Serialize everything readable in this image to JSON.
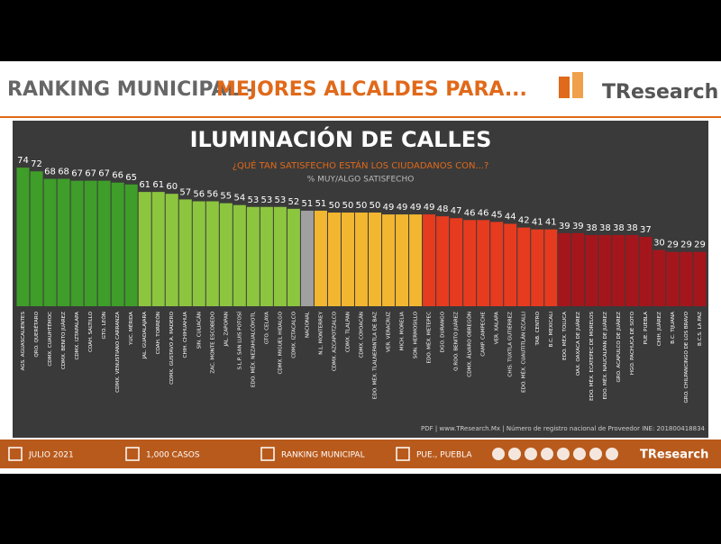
{
  "header": {
    "title_part1": "RANKING MUNICIPAL –",
    "title_part2": "MEJORES ALCALDES PARA...",
    "logo": "TResearch"
  },
  "chart_data": {
    "type": "bar",
    "title": "ILUMINACIÓN DE CALLES",
    "subtitle": "¿QUÉ TAN SATISFECHO ESTÁN LOS CIUDADANOS CON...?",
    "value_label_caption": "% MUY/ALGO SATISFECHO",
    "categories": [
      "AGS. AGUASCALIENTES",
      "QRO. QUERÉTARO",
      "CDMX. CUAUHTÉMOC",
      "CDMX. BENITO JUÁREZ",
      "CDMX. IZTAPALAPA",
      "COAH. SALTILLO",
      "GTO. LEÓN",
      "CDMX. VENUSTIANO CARRANZA",
      "YUC. MÉRIDA",
      "JAL. GUADALAJARA",
      "COAH. TORREÓN",
      "CDMX. GUSTAVO A. MADERO",
      "CHIH. CHIHUAHUA",
      "SIN. CULIACÁN",
      "ZAC. MONTE ESCOBEDO",
      "JAL. ZAPOPAN",
      "S.L.P. SAN LUIS POTOSÍ",
      "EDO. MÉX. NEZAHUALCÓYOTL",
      "GTO. CELAYA",
      "CDMX. MIGUEL HIDALGO",
      "CDMX. IZTACALCO",
      "NACIONAL",
      "N.L. MONTERREY",
      "CDMX. AZCAPOTZALCO",
      "CDMX. TLALPAN",
      "CDMX. COYOACÁN",
      "EDO. MÉX. TLALNEPANTLA DE BAZ",
      "VER. VERACRUZ",
      "MICH. MORELIA",
      "SON. HERMOSILLO",
      "EDO. MÉX. METEPEC",
      "DGO. DURANGO",
      "Q.ROO. BENITO JUÁREZ",
      "CDMX. ÁLVARO OBREGÓN",
      "CAMP. CAMPECHE",
      "VER. XALAPA",
      "CHIS. TUXTLA GUTIÉRREZ",
      "EDO. MÉX. CUAUTITLÁN IZCALLI",
      "TAB. CENTRO",
      "B.C. MEXICALI",
      "EDO. MÉX. TOLUCA",
      "OAX. OAXACA DE JUÁREZ",
      "EDO. MÉX. ECATEPEC DE MORELOS",
      "EDO. MÉX. NAUCALPAN DE JUÁREZ",
      "GRO. ACAPULCO DE JUÁREZ",
      "HGO. PACHUCA DE SOTO",
      "PUE. PUEBLA",
      "CHIH. JUÁREZ",
      "B.C. TIJUANA",
      "GRO. CHILPANCINGO DE LOS BRAVO",
      "B.C.S. LA PAZ"
    ],
    "values": [
      74,
      72,
      68,
      68,
      67,
      67,
      67,
      66,
      65,
      61,
      61,
      60,
      57,
      56,
      56,
      55,
      54,
      53,
      53,
      53,
      52,
      51,
      51,
      50,
      50,
      50,
      50,
      49,
      49,
      49,
      49,
      48,
      47,
      46,
      46,
      45,
      44,
      42,
      41,
      41,
      39,
      39,
      38,
      38,
      38,
      38,
      37,
      30,
      29,
      29,
      29
    ],
    "colors": [
      "#3f9d2a",
      "#3f9d2a",
      "#3f9d2a",
      "#3f9d2a",
      "#3f9d2a",
      "#3f9d2a",
      "#3f9d2a",
      "#3f9d2a",
      "#3f9d2a",
      "#8cc63f",
      "#8cc63f",
      "#8cc63f",
      "#8cc63f",
      "#8cc63f",
      "#8cc63f",
      "#8cc63f",
      "#8cc63f",
      "#8cc63f",
      "#8cc63f",
      "#8cc63f",
      "#8cc63f",
      "#a0a0a0",
      "#f2b630",
      "#f2b630",
      "#f2b630",
      "#f2b630",
      "#f2b630",
      "#f2b630",
      "#f2b630",
      "#f2b630",
      "#e63b1f",
      "#e63b1f",
      "#e63b1f",
      "#e63b1f",
      "#e63b1f",
      "#e63b1f",
      "#e63b1f",
      "#e63b1f",
      "#e63b1f",
      "#e63b1f",
      "#a5161c",
      "#a5161c",
      "#a5161c",
      "#a5161c",
      "#a5161c",
      "#a5161c",
      "#a5161c",
      "#a5161c",
      "#a5161c",
      "#a5161c",
      "#a5161c"
    ],
    "source": "PDF | www.TResearch.Mx | Número de registro nacional de Proveedor INE: 201800418834"
  },
  "footer": {
    "items": [
      "JULIO 2021",
      "1,000 CASOS",
      "RANKING MUNICIPAL",
      "PUE., PUEBLA"
    ],
    "logo": "TResearch"
  }
}
